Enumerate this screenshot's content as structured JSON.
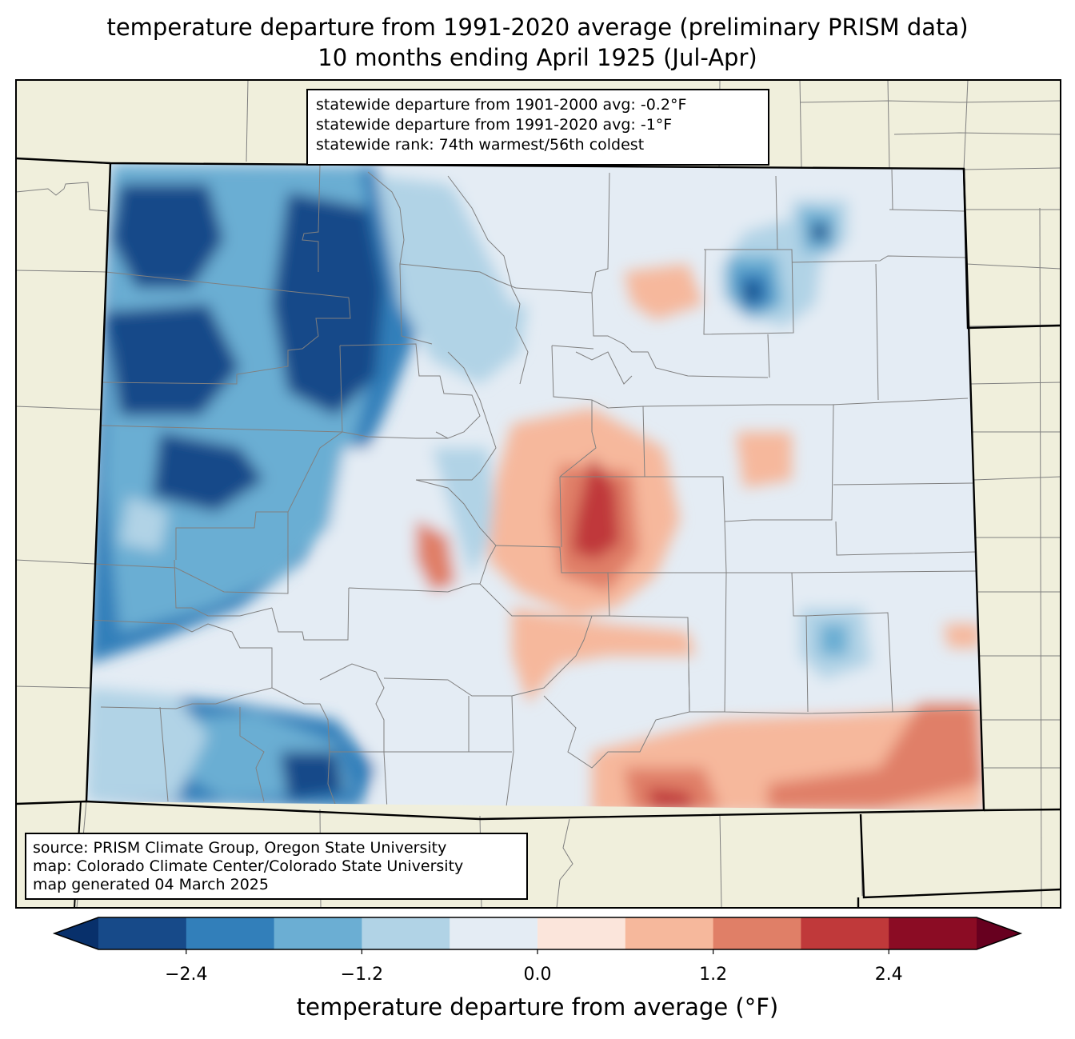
{
  "title": {
    "line1": "temperature departure from 1991-2020 average (preliminary PRISM data)",
    "line2": "10 months ending April 1925 (Jul-Apr)"
  },
  "stats": {
    "line1": "statewide departure from 1901-2000 avg: -0.2°F",
    "line2": "statewide departure from 1991-2020 avg: -1°F",
    "line3": "statewide rank: 74th warmest/56th coldest"
  },
  "source": {
    "line1": "source: PRISM Climate Group, Oregon State University",
    "line2": "map: Colorado Climate Center/Colorado State University",
    "line3": "map generated 04 March 2025"
  },
  "colorbar": {
    "label": "temperature departure from average (°F)",
    "ticks": [
      "−2.4",
      "−1.2",
      "0.0",
      "1.2",
      "2.4"
    ],
    "tick_values": [
      -2.4,
      -1.2,
      0.0,
      1.2,
      2.4
    ],
    "range": [
      -3.0,
      3.0
    ],
    "step": 0.6,
    "extend": "both",
    "colors": [
      "#08306b",
      "#174a89",
      "#327fba",
      "#6baed3",
      "#b1d3e6",
      "#e4ecf4",
      "#fbe5db",
      "#f6b89c",
      "#e07f67",
      "#c0393a",
      "#8b0c24",
      "#67001f"
    ]
  },
  "map_colors": {
    "land": "#f0efdc",
    "state_border": "#000000",
    "county_border": "#808080"
  }
}
